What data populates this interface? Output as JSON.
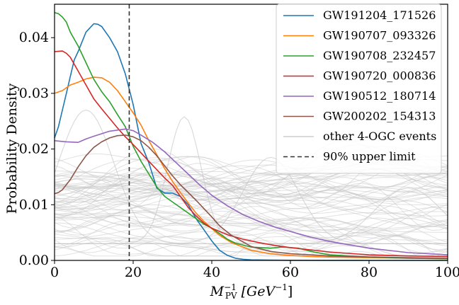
{
  "chart_data": {
    "type": "line",
    "xlabel_main": "M",
    "xlabel_sup": "−1",
    "xlabel_sub": "PV",
    "xlabel_unit": " [GeV",
    "xlabel_unit_sup": "−1",
    "xlabel_unit_end": "]",
    "ylabel": "Probability Density",
    "xlim": [
      0,
      100
    ],
    "ylim": [
      0,
      0.046
    ],
    "x_ticks": [
      0,
      20,
      40,
      60,
      80,
      100
    ],
    "x_tick_labels": [
      "0",
      "20",
      "40",
      "60",
      "80",
      "100"
    ],
    "y_ticks": [
      0,
      0.01,
      0.02,
      0.03,
      0.04
    ],
    "y_tick_labels": [
      "0.00",
      "0.01",
      "0.02",
      "0.03",
      "0.04"
    ],
    "grid": false,
    "legend_position": "top-right",
    "upper_limit": {
      "name": "90% upper limit",
      "x": 19,
      "color": "#333333"
    },
    "background_series_name": "other 4-OGC events",
    "background_color": "#c8c8c8",
    "series": [
      {
        "name": "GW191204_171526",
        "color": "#1f77b4",
        "x": [
          0,
          1,
          2,
          3,
          4,
          5,
          6,
          8,
          10,
          11,
          12,
          14,
          16,
          18,
          20,
          22,
          24,
          26,
          28,
          30,
          32,
          34,
          36,
          38,
          40,
          42,
          44,
          46,
          48,
          50,
          55,
          60,
          70,
          80,
          90,
          100
        ],
        "y": [
          0.022,
          0.024,
          0.027,
          0.03,
          0.033,
          0.036,
          0.0375,
          0.041,
          0.0425,
          0.0424,
          0.042,
          0.04,
          0.0375,
          0.0335,
          0.028,
          0.021,
          0.0175,
          0.013,
          0.0121,
          0.0121,
          0.0115,
          0.01,
          0.0075,
          0.0055,
          0.0035,
          0.0018,
          0.0009,
          0.0004,
          0.0002,
          0.0001,
          5e-05,
          3e-05,
          1e-05,
          0,
          0,
          0
        ]
      },
      {
        "name": "GW190707_093326",
        "color": "#ff7f0e",
        "x": [
          0,
          2,
          4,
          6,
          8,
          10,
          12,
          14,
          16,
          18,
          20,
          22,
          24,
          26,
          28,
          30,
          32,
          34,
          36,
          38,
          40,
          42,
          45,
          50,
          55,
          60,
          65,
          70,
          80,
          90,
          100
        ],
        "y": [
          0.03,
          0.0305,
          0.0315,
          0.032,
          0.0326,
          0.0329,
          0.0328,
          0.032,
          0.0305,
          0.0285,
          0.0265,
          0.0243,
          0.0215,
          0.019,
          0.0165,
          0.0142,
          0.0122,
          0.0103,
          0.0085,
          0.007,
          0.0057,
          0.0045,
          0.0032,
          0.0018,
          0.0012,
          0.0009,
          0.0007,
          0.0006,
          0.0005,
          0.0004,
          0.0003
        ]
      },
      {
        "name": "GW190708_232457",
        "color": "#2ca02c",
        "x": [
          0,
          1,
          2,
          3,
          4,
          6,
          8,
          10,
          12,
          14,
          16,
          18,
          20,
          22,
          24,
          26,
          28,
          30,
          32,
          34,
          36,
          38,
          40,
          42,
          44,
          46,
          50,
          55,
          58,
          62,
          66,
          70,
          80,
          90,
          100
        ],
        "y": [
          0.0445,
          0.0443,
          0.0437,
          0.0428,
          0.041,
          0.0385,
          0.0355,
          0.0325,
          0.0303,
          0.0285,
          0.0262,
          0.024,
          0.0205,
          0.0178,
          0.0155,
          0.0132,
          0.0115,
          0.0105,
          0.0095,
          0.0085,
          0.0075,
          0.0065,
          0.0058,
          0.0048,
          0.0038,
          0.0031,
          0.0024,
          0.0022,
          0.0024,
          0.0022,
          0.0015,
          0.001,
          0.0006,
          0.0004,
          0.0003
        ]
      },
      {
        "name": "GW190720_000836",
        "color": "#d62728",
        "x": [
          0,
          2,
          3,
          4,
          6,
          8,
          10,
          12,
          14,
          16,
          18,
          20,
          22,
          24,
          26,
          28,
          30,
          32,
          34,
          36,
          38,
          40,
          44,
          48,
          52,
          56,
          60,
          65,
          70,
          80,
          90,
          100
        ],
        "y": [
          0.0375,
          0.0376,
          0.0372,
          0.0365,
          0.034,
          0.0315,
          0.029,
          0.0272,
          0.0255,
          0.0238,
          0.0222,
          0.0208,
          0.0193,
          0.0178,
          0.0163,
          0.0148,
          0.0135,
          0.0115,
          0.0095,
          0.008,
          0.0067,
          0.0058,
          0.0046,
          0.0038,
          0.0032,
          0.0027,
          0.0023,
          0.0019,
          0.0015,
          0.001,
          0.0008,
          0.0007
        ]
      },
      {
        "name": "GW190512_180714",
        "color": "#9467bd",
        "x": [
          0,
          3,
          6,
          8,
          10,
          14,
          18,
          20,
          22,
          25,
          28,
          31,
          34,
          37,
          40,
          44,
          48,
          52,
          56,
          60,
          65,
          70,
          80,
          90,
          100
        ],
        "y": [
          0.0215,
          0.0213,
          0.0212,
          0.0218,
          0.0223,
          0.0232,
          0.0236,
          0.0233,
          0.0225,
          0.0212,
          0.0195,
          0.0175,
          0.0155,
          0.0135,
          0.0117,
          0.0098,
          0.0082,
          0.007,
          0.006,
          0.0052,
          0.0042,
          0.0034,
          0.0022,
          0.0014,
          0.001
        ]
      },
      {
        "name": "GW200202_154313",
        "color": "#8c564b",
        "x": [
          0,
          1,
          2,
          4,
          6,
          8,
          10,
          12,
          14,
          16,
          18,
          20,
          22,
          24,
          26,
          28,
          30,
          32,
          34,
          36,
          38,
          40,
          42,
          45,
          50,
          55,
          60,
          65,
          70,
          80,
          90,
          100
        ],
        "y": [
          0.012,
          0.0122,
          0.0127,
          0.0145,
          0.0168,
          0.0188,
          0.0203,
          0.0213,
          0.022,
          0.0224,
          0.0225,
          0.0222,
          0.0215,
          0.0203,
          0.0188,
          0.017,
          0.0152,
          0.0136,
          0.0122,
          0.0108,
          0.0093,
          0.0078,
          0.0062,
          0.0045,
          0.0025,
          0.0016,
          0.0012,
          0.001,
          0.0008,
          0.0006,
          0.0005,
          0.0004
        ]
      }
    ],
    "legend_entries": [
      "GW191204_171526",
      "GW190707_093326",
      "GW190708_232457",
      "GW190720_000836",
      "GW190512_180714",
      "GW200202_154313",
      "other 4-OGC events",
      "90% upper limit"
    ]
  }
}
